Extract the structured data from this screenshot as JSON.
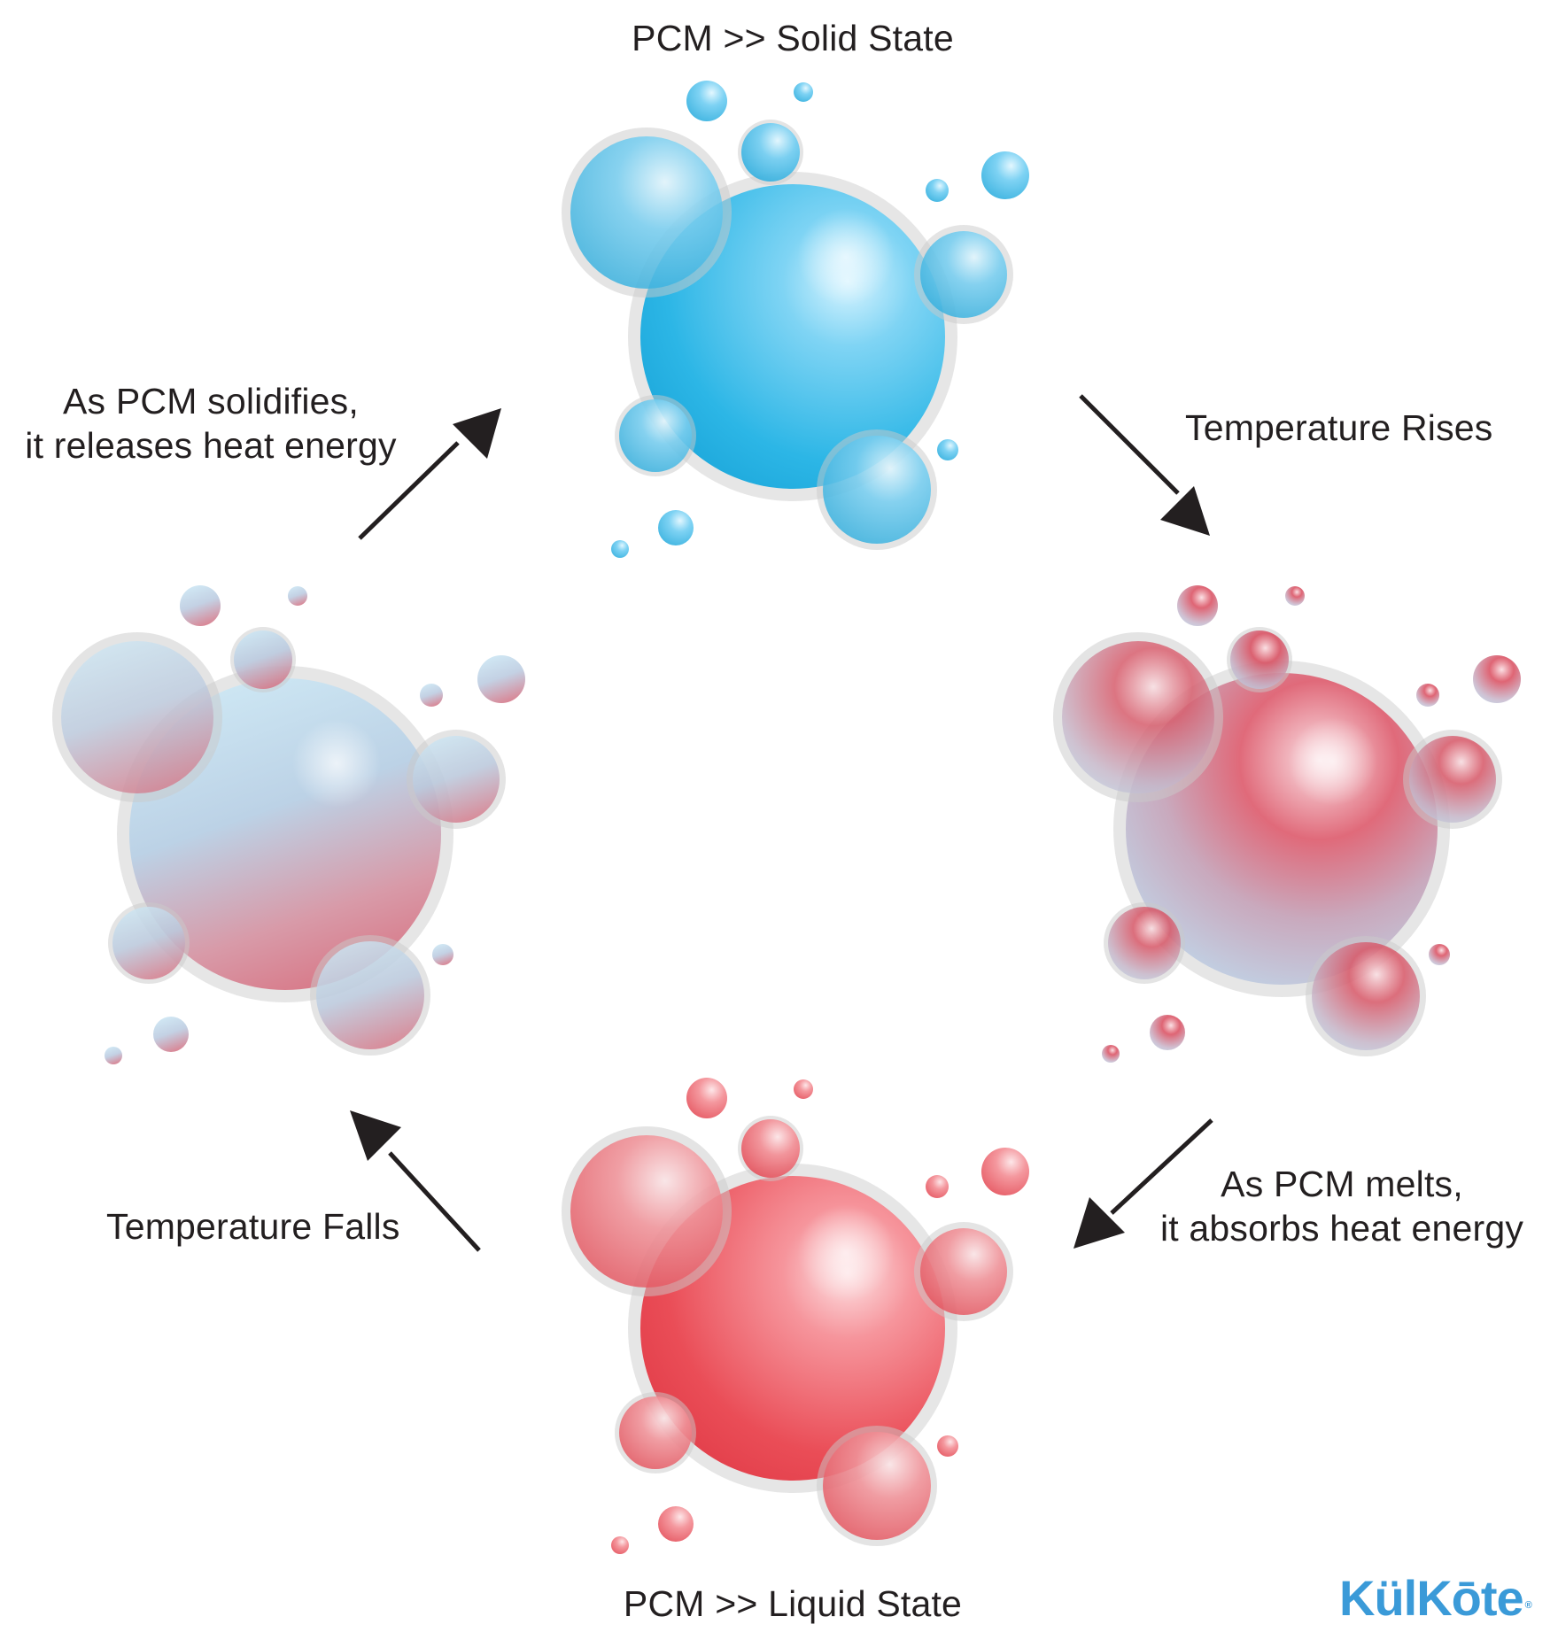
{
  "states": {
    "solid": {
      "label": "PCM >> Solid State"
    },
    "liquid": {
      "label": "PCM >> Liquid State"
    }
  },
  "transitions": {
    "temperature_rises": {
      "label": "Temperature Rises"
    },
    "melts": {
      "line1": "As PCM melts,",
      "line2": "it absorbs heat energy"
    },
    "temperature_falls": {
      "label": "Temperature Falls"
    },
    "solidifies": {
      "line1": "As PCM solidifies,",
      "line2": "it releases heat energy"
    }
  },
  "logo": {
    "text": "KülKōte",
    "mark": "®"
  },
  "colors": {
    "solid_blue": "#2cb8e8",
    "liquid_red": "#e8424e",
    "arrow": "#231f20",
    "logo": "#3a9ad8"
  }
}
